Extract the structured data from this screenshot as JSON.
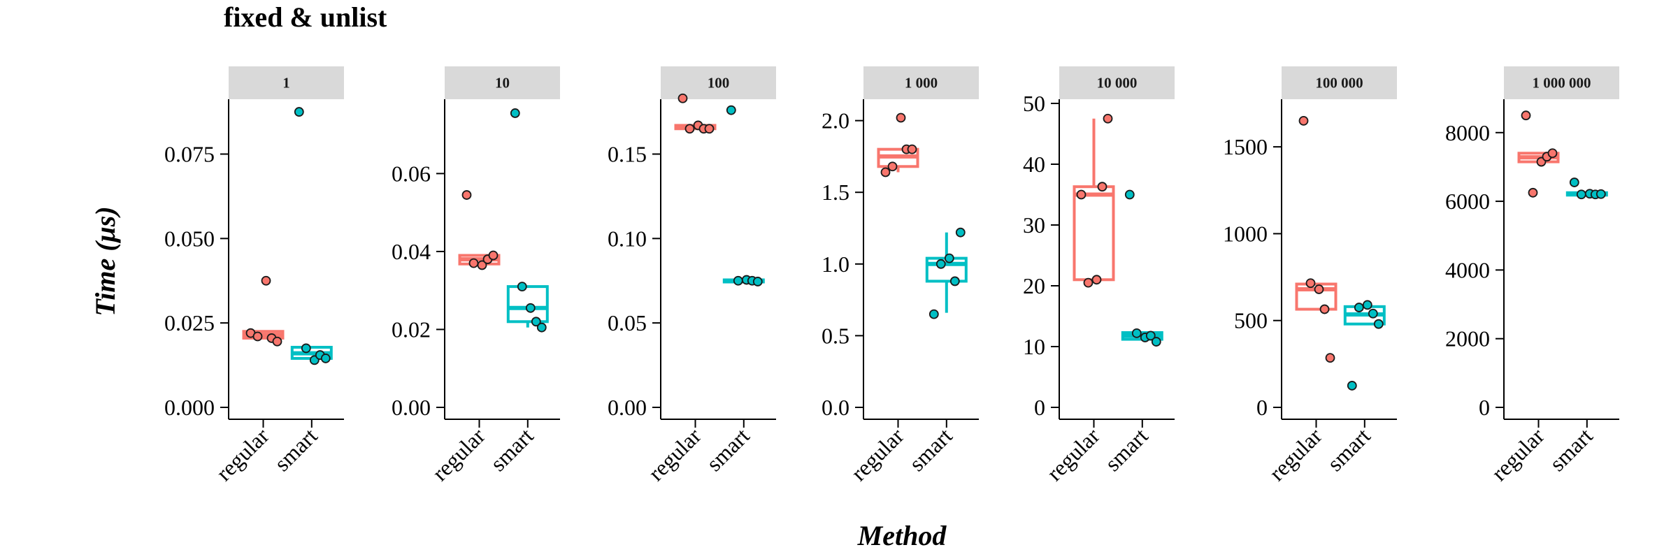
{
  "chart_data": {
    "type": "box",
    "title": "fixed & unlist",
    "xlabel": "Method",
    "ylabel": "Time (μs)",
    "categories": [
      "regular",
      "smart"
    ],
    "colors": {
      "regular": "#F8766D",
      "smart": "#00BFC4"
    },
    "grid": false,
    "panels": [
      {
        "label": "1",
        "ylim": [
          0,
          0.09
        ],
        "yticks": [
          0,
          0.025,
          0.05,
          0.075
        ],
        "ytick_labels": [
          "0.000",
          "0.025",
          "0.050",
          "0.075"
        ],
        "boxes": {
          "regular": {
            "q1": 0.0205,
            "median": 0.0215,
            "q3": 0.0225,
            "whisker_low": 0.0205,
            "whisker_high": 0.0225
          },
          "smart": {
            "q1": 0.0145,
            "median": 0.016,
            "q3": 0.0178,
            "whisker_low": 0.0142,
            "whisker_high": 0.0178
          }
        },
        "points": {
          "regular": [
            0.022,
            0.021,
            0.0375,
            0.0205,
            0.0195
          ],
          "smart": [
            0.0875,
            0.0175,
            0.014,
            0.0155,
            0.0145
          ]
        }
      },
      {
        "label": "10",
        "ylim": [
          0,
          0.078
        ],
        "yticks": [
          0,
          0.02,
          0.04,
          0.06
        ],
        "ytick_labels": [
          "0.00",
          "0.02",
          "0.04",
          "0.06"
        ],
        "boxes": {
          "regular": {
            "q1": 0.0368,
            "median": 0.038,
            "q3": 0.039,
            "whisker_low": 0.0368,
            "whisker_high": 0.039
          },
          "smart": {
            "q1": 0.022,
            "median": 0.0255,
            "q3": 0.031,
            "whisker_low": 0.0205,
            "whisker_high": 0.031
          }
        },
        "points": {
          "regular": [
            0.0545,
            0.037,
            0.0365,
            0.038,
            0.039
          ],
          "smart": [
            0.0755,
            0.031,
            0.0255,
            0.022,
            0.0205
          ]
        }
      },
      {
        "label": "100",
        "ylim": [
          0,
          0.18
        ],
        "yticks": [
          0,
          0.05,
          0.1,
          0.15
        ],
        "ytick_labels": [
          "0.00",
          "0.05",
          "0.10",
          "0.15"
        ],
        "boxes": {
          "regular": {
            "q1": 0.165,
            "median": 0.166,
            "q3": 0.167,
            "whisker_low": 0.165,
            "whisker_high": 0.167
          },
          "smart": {
            "q1": 0.0745,
            "median": 0.075,
            "q3": 0.0755,
            "whisker_low": 0.0745,
            "whisker_high": 0.0755
          }
        },
        "points": {
          "regular": [
            0.183,
            0.165,
            0.167,
            0.165,
            0.165
          ],
          "smart": [
            0.176,
            0.075,
            0.0755,
            0.075,
            0.0745
          ]
        }
      },
      {
        "label": "1 000",
        "ylim": [
          0,
          2.12
        ],
        "yticks": [
          0,
          0.5,
          1.0,
          1.5,
          2.0
        ],
        "ytick_labels": [
          "0.0",
          "0.5",
          "1.0",
          "1.5",
          "2.0"
        ],
        "boxes": {
          "regular": {
            "q1": 1.68,
            "median": 1.75,
            "q3": 1.8,
            "whisker_low": 1.64,
            "whisker_high": 1.8
          },
          "smart": {
            "q1": 0.88,
            "median": 1.0,
            "q3": 1.04,
            "whisker_low": 0.66,
            "whisker_high": 1.22
          }
        },
        "points": {
          "regular": [
            1.64,
            1.68,
            2.02,
            1.8,
            1.8
          ],
          "smart": [
            0.65,
            1.0,
            1.04,
            0.88,
            1.22
          ]
        }
      },
      {
        "label": "10 000",
        "ylim": [
          0,
          50
        ],
        "yticks": [
          0,
          10,
          20,
          30,
          40,
          50
        ],
        "ytick_labels": [
          "0",
          "10",
          "20",
          "30",
          "40",
          "50"
        ],
        "boxes": {
          "regular": {
            "q1": 21,
            "median": 35,
            "q3": 36.3,
            "whisker_low": 21,
            "whisker_high": 47.5
          },
          "smart": {
            "q1": 11.2,
            "median": 11.8,
            "q3": 12.3,
            "whisker_low": 11.2,
            "whisker_high": 12.3
          }
        },
        "points": {
          "regular": [
            35,
            20.5,
            21,
            36.3,
            47.5
          ],
          "smart": [
            35,
            12.2,
            11.5,
            11.8,
            10.8
          ]
        }
      },
      {
        "label": "100 000",
        "ylim": [
          0,
          1750
        ],
        "yticks": [
          0,
          500,
          1000,
          1500
        ],
        "ytick_labels": [
          "0",
          "500",
          "1000",
          "1500"
        ],
        "boxes": {
          "regular": {
            "q1": 565,
            "median": 680,
            "q3": 710,
            "whisker_low": 565,
            "whisker_high": 710
          },
          "smart": {
            "q1": 480,
            "median": 535,
            "q3": 580,
            "whisker_low": 480,
            "whisker_high": 580
          }
        },
        "points": {
          "regular": [
            1650,
            715,
            680,
            565,
            285
          ],
          "smart": [
            125,
            575,
            590,
            540,
            480
          ]
        }
      },
      {
        "label": "1 000 000",
        "ylim": [
          0,
          8850
        ],
        "yticks": [
          0,
          2000,
          4000,
          6000,
          8000
        ],
        "ytick_labels": [
          "0",
          "2000",
          "4000",
          "6000",
          "8000"
        ],
        "boxes": {
          "regular": {
            "q1": 7150,
            "median": 7280,
            "q3": 7400,
            "whisker_low": 7150,
            "whisker_high": 7400
          },
          "smart": {
            "q1": 6180,
            "median": 6220,
            "q3": 6250,
            "whisker_low": 6180,
            "whisker_high": 6250
          }
        },
        "points": {
          "regular": [
            8500,
            6250,
            7150,
            7300,
            7400
          ],
          "smart": [
            6550,
            6200,
            6220,
            6200,
            6210
          ]
        }
      }
    ]
  }
}
